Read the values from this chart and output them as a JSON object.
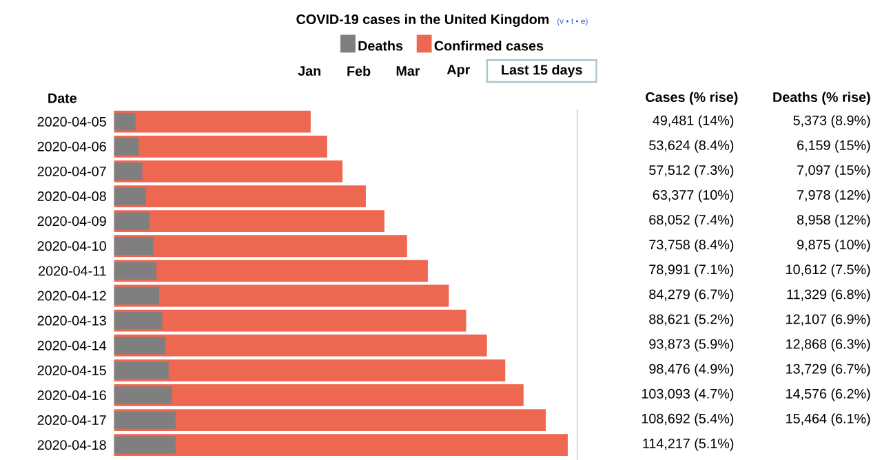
{
  "chart_data": {
    "type": "bar",
    "orientation": "horizontal",
    "title": "COVID-19 cases in the United Kingdom",
    "ylabel": "Date",
    "categories": [
      "2020-04-05",
      "2020-04-06",
      "2020-04-07",
      "2020-04-08",
      "2020-04-09",
      "2020-04-10",
      "2020-04-11",
      "2020-04-12",
      "2020-04-13",
      "2020-04-14",
      "2020-04-15",
      "2020-04-16",
      "2020-04-17",
      "2020-04-18"
    ],
    "series": [
      {
        "name": "Deaths",
        "color": "#7f7f7f",
        "values": [
          5373,
          6159,
          7097,
          7978,
          8958,
          9875,
          10612,
          11329,
          12107,
          12868,
          13729,
          14576,
          15464,
          15464
        ],
        "value_labels": [
          "5,373 (8.9%)",
          "6,159 (15%)",
          "7,097 (15%)",
          "7,978 (12%)",
          "8,958 (12%)",
          "9,875 (10%)",
          "10,612 (7.5%)",
          "11,329 (6.8%)",
          "12,107 (6.9%)",
          "12,868 (6.3%)",
          "13,729 (6.7%)",
          "14,576 (6.2%)",
          "15,464 (6.1%)",
          null
        ]
      },
      {
        "name": "Confirmed cases",
        "color": "#ee6751",
        "values": [
          49481,
          53624,
          57512,
          63377,
          68052,
          73758,
          78991,
          84279,
          88621,
          93873,
          98476,
          103093,
          108692,
          114217
        ],
        "value_labels": [
          "49,481 (14%)",
          "53,624 (8.4%)",
          "57,512 (7.3%)",
          "63,377 (10%)",
          "68,052 (7.4%)",
          "73,758 (8.4%)",
          "78,991 (7.1%)",
          "84,279 (6.7%)",
          "88,621 (5.2%)",
          "93,873 (5.9%)",
          "98,476 (4.9%)",
          "103,093 (4.7%)",
          "108,692 (5.4%)",
          "114,217 (5.1%)"
        ]
      }
    ],
    "legend": "top",
    "annotations": [
      "(v • t • e)",
      "Jan",
      "Feb",
      "Mar",
      "Apr",
      "Last 15 days",
      "Cases (% rise)",
      "Deaths (% rise)"
    ]
  }
}
